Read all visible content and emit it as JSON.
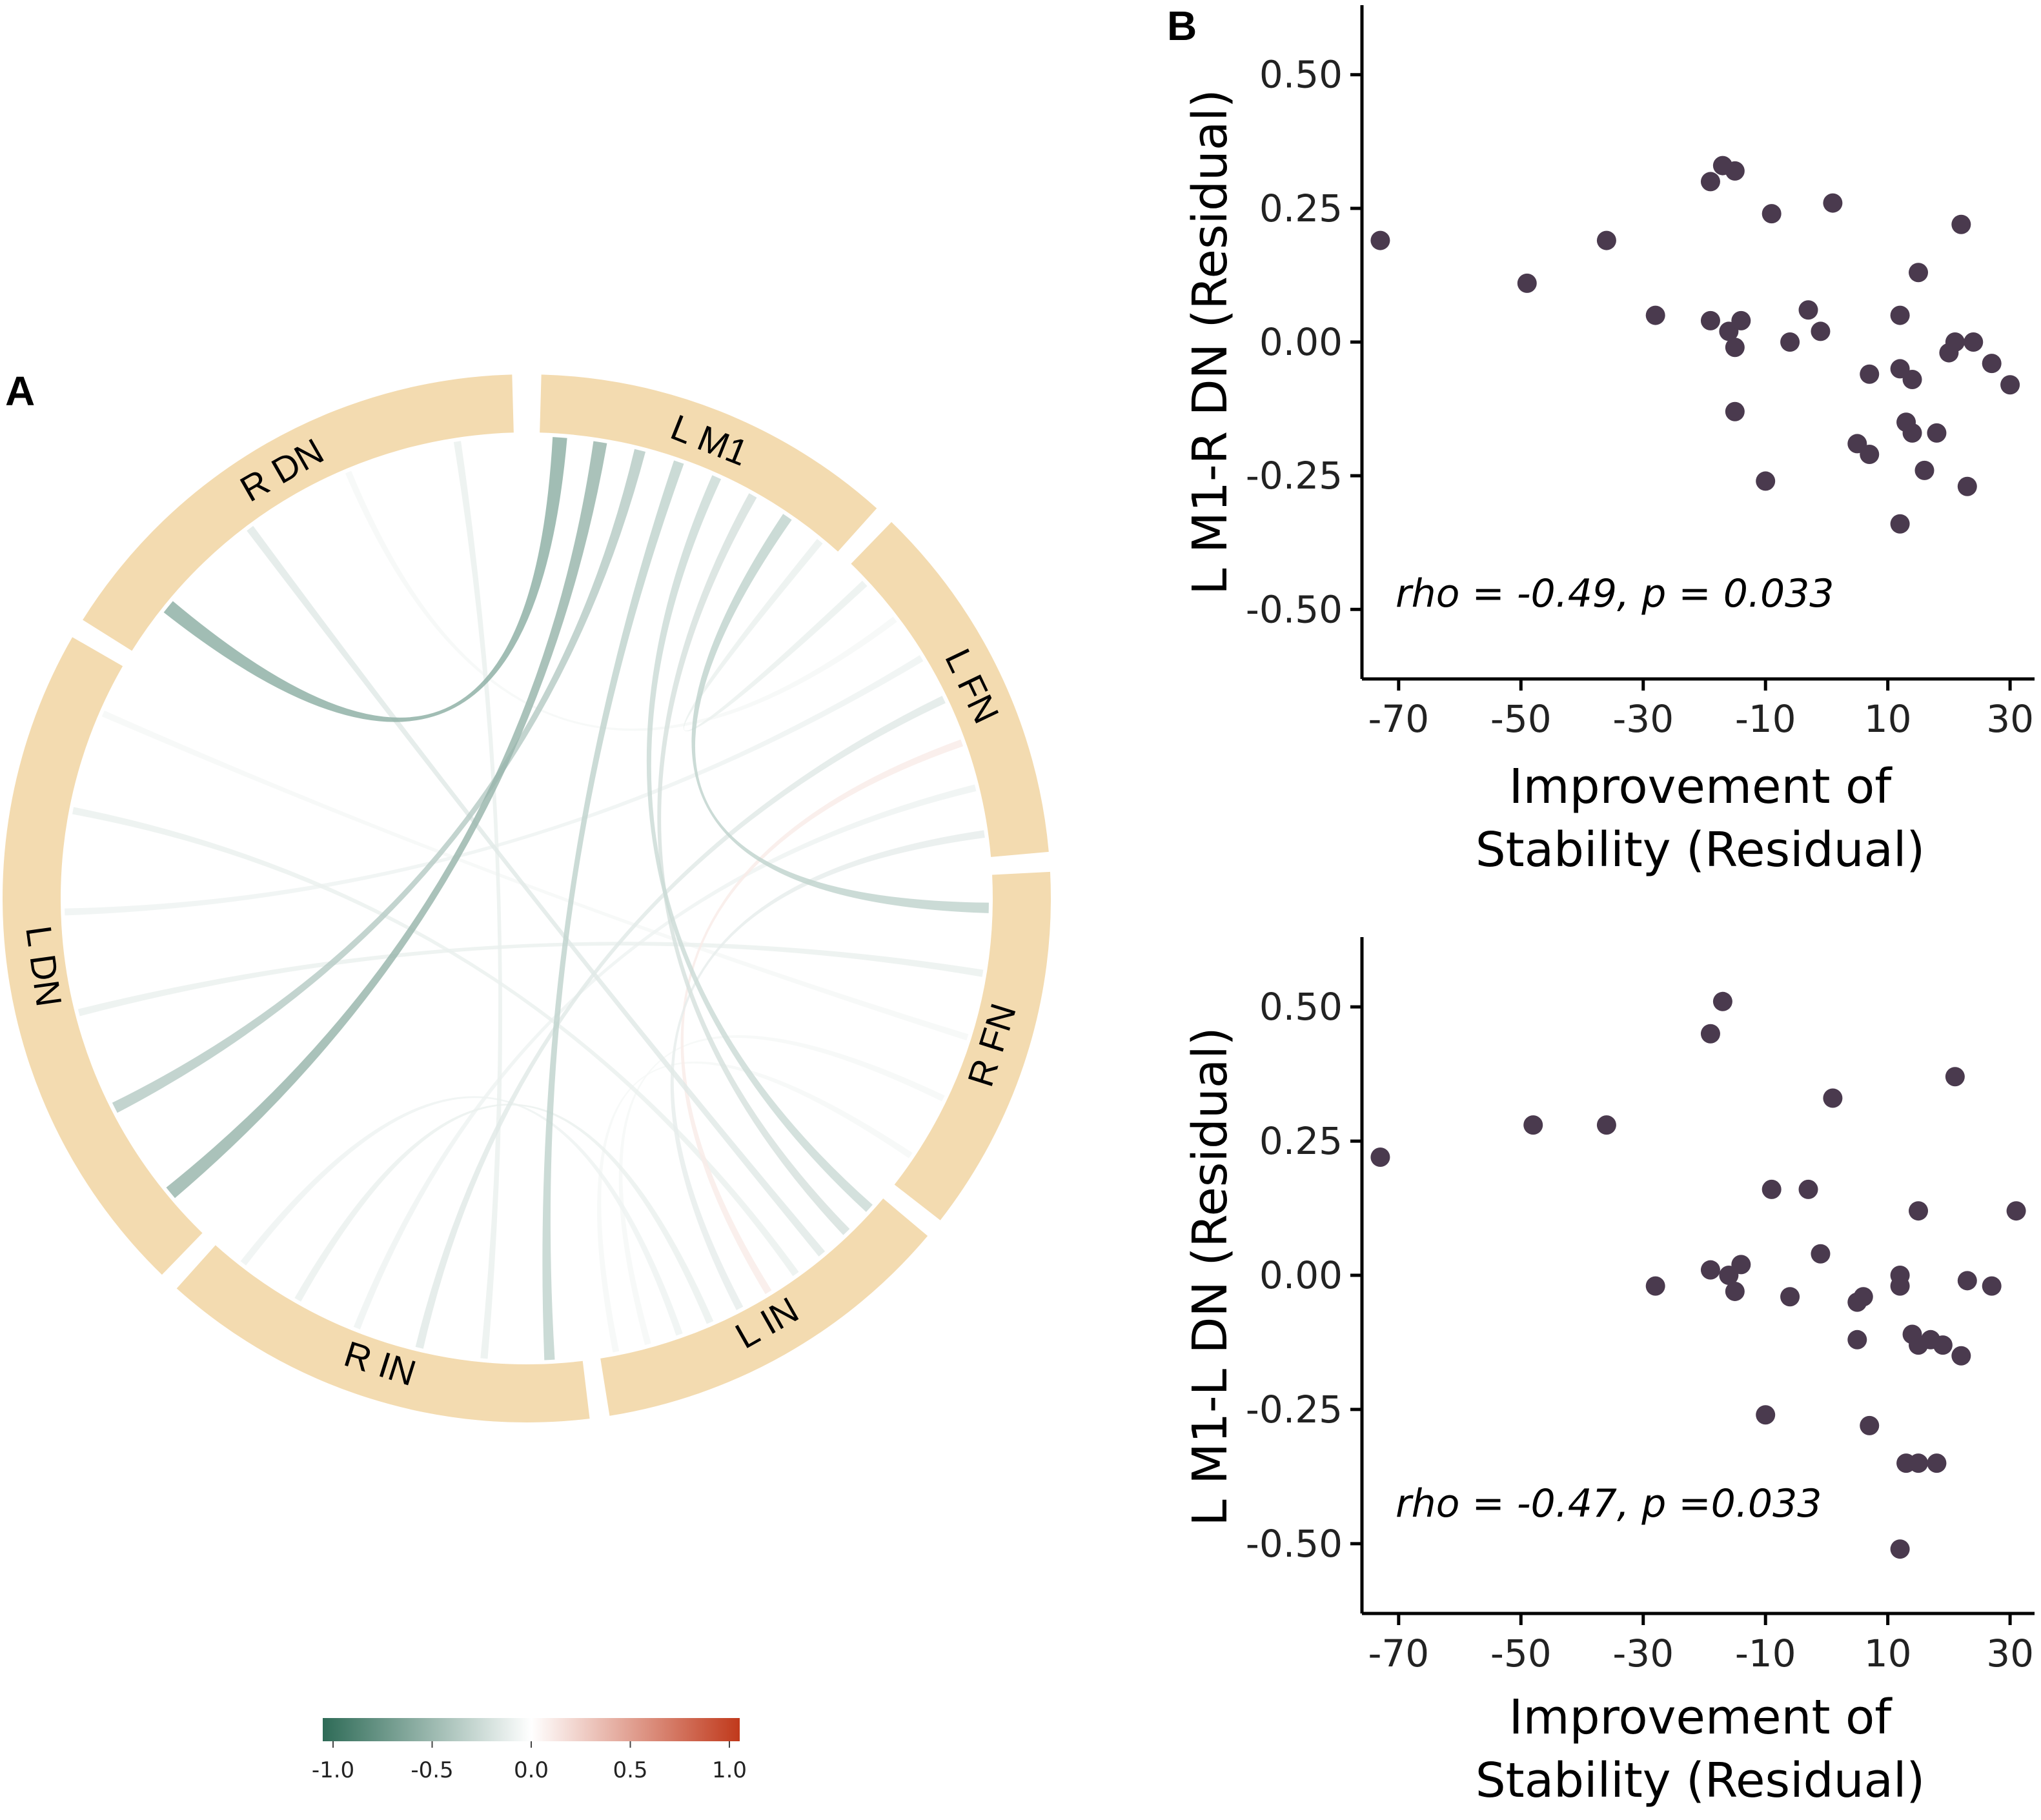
{
  "panel_labels": {
    "a": "A",
    "b": "B"
  },
  "colors": {
    "sector": "#f3dbb0",
    "point": "#4a3a4e",
    "axis": "#000000",
    "scale_low": "#2e6b57",
    "scale_mid": "#ffffff",
    "scale_high": "#c0391b"
  },
  "chart_data": [
    {
      "type": "chord",
      "sectors": [
        "L M1",
        "L FN",
        "R FN",
        "L IN",
        "R IN",
        "L DN",
        "R DN"
      ],
      "links": [
        {
          "from": "L M1",
          "to": "R DN",
          "value": -0.55
        },
        {
          "from": "L M1",
          "to": "L DN",
          "value": -0.5
        },
        {
          "from": "L M1",
          "to": "L DN",
          "value": -0.35
        },
        {
          "from": "L M1",
          "to": "R IN",
          "value": -0.3
        },
        {
          "from": "L M1",
          "to": "L IN",
          "value": -0.25
        },
        {
          "from": "L M1",
          "to": "L IN",
          "value": -0.2
        },
        {
          "from": "L M1",
          "to": "R FN",
          "value": -0.3
        },
        {
          "from": "L M1",
          "to": "L FN",
          "value": -0.1
        },
        {
          "from": "R DN",
          "to": "L IN",
          "value": -0.15
        },
        {
          "from": "R DN",
          "to": "L FN",
          "value": -0.05
        },
        {
          "from": "R DN",
          "to": "R IN",
          "value": -0.1
        },
        {
          "from": "L DN",
          "to": "R FN",
          "value": -0.1
        },
        {
          "from": "L DN",
          "to": "L FN",
          "value": -0.08
        },
        {
          "from": "L DN",
          "to": "L IN",
          "value": -0.1
        },
        {
          "from": "L DN",
          "to": "R FN",
          "value": -0.05
        },
        {
          "from": "L FN",
          "to": "R IN",
          "value": -0.15
        },
        {
          "from": "L FN",
          "to": "L IN",
          "value": 0.1
        },
        {
          "from": "L FN",
          "to": "R IN",
          "value": -0.08
        },
        {
          "from": "L FN",
          "to": "L IN",
          "value": -0.12
        },
        {
          "from": "R IN",
          "to": "L IN",
          "value": -0.1
        },
        {
          "from": "R IN",
          "to": "L IN",
          "value": -0.08
        },
        {
          "from": "L IN",
          "to": "R FN",
          "value": -0.05
        },
        {
          "from": "L IN",
          "to": "R FN",
          "value": -0.05
        }
      ],
      "colorbar": {
        "ticks": [
          "-1.0",
          "-0.5",
          "0.0",
          "0.5",
          "1.0"
        ],
        "range": [
          -1,
          1
        ]
      }
    },
    {
      "type": "scatter",
      "xlabel": [
        "Improvement of",
        "Stability (Residual)"
      ],
      "ylabel": "L M1-R DN (Residual)",
      "xlim": [
        -76,
        34
      ],
      "ylim": [
        -0.63,
        0.63
      ],
      "xticks": [
        -70,
        -50,
        -30,
        -10,
        10,
        30
      ],
      "xtick_labels": [
        "-70",
        "-50",
        "-30",
        "-10",
        "10",
        "30"
      ],
      "yticks": [
        0.5,
        0.25,
        0,
        -0.25,
        -0.5
      ],
      "ytick_labels": [
        "0.50",
        "0.25",
        "0.00",
        "-0.25",
        "-0.50"
      ],
      "annotation": "rho = -0.49, p = 0.033",
      "points": [
        [
          -73,
          0.19
        ],
        [
          -49,
          0.11
        ],
        [
          -36,
          0.19
        ],
        [
          -28,
          0.05
        ],
        [
          -19,
          0.3
        ],
        [
          -17,
          0.33
        ],
        [
          -15,
          0.32
        ],
        [
          -19,
          0.04
        ],
        [
          -16,
          0.02
        ],
        [
          -14,
          0.04
        ],
        [
          -15,
          -0.01
        ],
        [
          -15,
          -0.13
        ],
        [
          -9,
          0.24
        ],
        [
          -10,
          -0.26
        ],
        [
          -6,
          0.0
        ],
        [
          -3,
          0.06
        ],
        [
          -1,
          0.02
        ],
        [
          1,
          0.26
        ],
        [
          5,
          -0.19
        ],
        [
          7,
          -0.21
        ],
        [
          7,
          -0.06
        ],
        [
          12,
          0.05
        ],
        [
          12,
          -0.05
        ],
        [
          14,
          -0.07
        ],
        [
          13,
          -0.15
        ],
        [
          14,
          -0.17
        ],
        [
          15,
          0.13
        ],
        [
          16,
          -0.24
        ],
        [
          12,
          -0.34
        ],
        [
          18,
          -0.17
        ],
        [
          20,
          -0.02
        ],
        [
          21,
          0.0
        ],
        [
          22,
          0.22
        ],
        [
          24,
          0.0
        ],
        [
          23,
          -0.27
        ],
        [
          27,
          -0.04
        ],
        [
          30,
          -0.08
        ]
      ]
    },
    {
      "type": "scatter",
      "xlabel": [
        "Improvement of",
        "Stability (Residual)"
      ],
      "ylabel": "L M1-L DN (Residual)",
      "xlim": [
        -76,
        34
      ],
      "ylim": [
        -0.63,
        0.63
      ],
      "xticks": [
        -70,
        -50,
        -30,
        -10,
        10,
        30
      ],
      "xtick_labels": [
        "-70",
        "-50",
        "-30",
        "-10",
        "10",
        "30"
      ],
      "yticks": [
        0.5,
        0.25,
        0,
        -0.25,
        -0.5
      ],
      "ytick_labels": [
        "0.50",
        "0.25",
        "0.00",
        "-0.25",
        "-0.50"
      ],
      "annotation": "rho = -0.47, p =0.033",
      "points": [
        [
          -73,
          0.22
        ],
        [
          -48,
          0.28
        ],
        [
          -36,
          0.28
        ],
        [
          -28,
          -0.02
        ],
        [
          -19,
          0.45
        ],
        [
          -17,
          0.51
        ],
        [
          -19,
          0.01
        ],
        [
          -16,
          0.0
        ],
        [
          -14,
          0.02
        ],
        [
          -15,
          -0.03
        ],
        [
          -9,
          0.16
        ],
        [
          -10,
          -0.26
        ],
        [
          -6,
          -0.04
        ],
        [
          -3,
          0.16
        ],
        [
          -1,
          0.04
        ],
        [
          1,
          0.33
        ],
        [
          5,
          -0.05
        ],
        [
          6,
          -0.04
        ],
        [
          5,
          -0.12
        ],
        [
          7,
          -0.28
        ],
        [
          12,
          0.0
        ],
        [
          12,
          -0.02
        ],
        [
          14,
          -0.11
        ],
        [
          15,
          0.12
        ],
        [
          15,
          -0.13
        ],
        [
          17,
          -0.12
        ],
        [
          19,
          -0.13
        ],
        [
          13,
          -0.35
        ],
        [
          15,
          -0.35
        ],
        [
          18,
          -0.35
        ],
        [
          12,
          -0.51
        ],
        [
          21,
          0.37
        ],
        [
          23,
          -0.01
        ],
        [
          22,
          -0.15
        ],
        [
          27,
          -0.02
        ],
        [
          31,
          0.12
        ]
      ]
    }
  ]
}
